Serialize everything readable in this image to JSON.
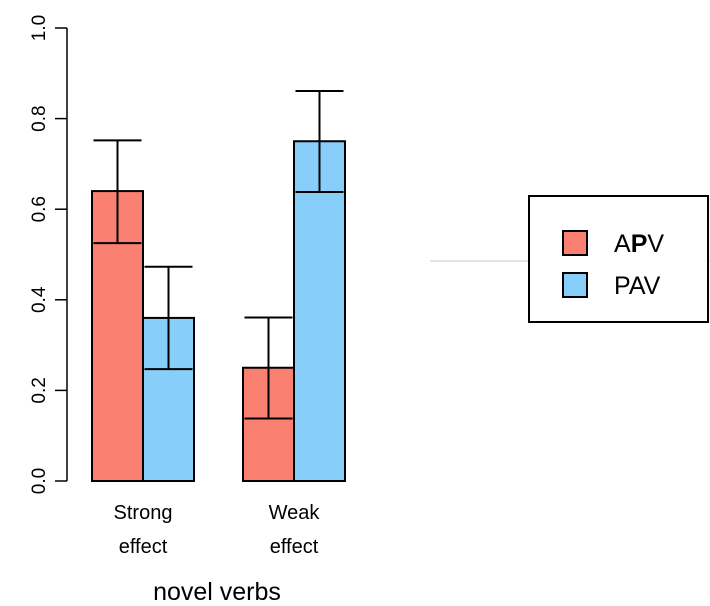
{
  "chart_data": {
    "type": "bar",
    "categories": [
      {
        "line1": "Strong",
        "line2": "effect"
      },
      {
        "line1": "Weak",
        "line2": "effect"
      }
    ],
    "series": [
      {
        "name": "APV",
        "color": "#FA8072",
        "values": [
          0.64,
          0.25
        ],
        "err_low": [
          0.525,
          0.138
        ],
        "err_high": [
          0.752,
          0.361
        ]
      },
      {
        "name": "PAV",
        "color": "#87CEFA",
        "values": [
          0.36,
          0.75
        ],
        "err_low": [
          0.247,
          0.638
        ],
        "err_high": [
          0.473,
          0.861
        ]
      }
    ],
    "legend": {
      "position": "right",
      "entries": [
        {
          "prefix": "A",
          "bold": "P",
          "suffix": "V"
        },
        {
          "prefix": "PAV",
          "bold": "",
          "suffix": ""
        }
      ]
    },
    "xlabel": "novel verbs",
    "ylabel": "",
    "ylim": [
      0,
      1
    ],
    "yticks": [
      "0.0",
      "0.2",
      "0.4",
      "0.6",
      "0.8",
      "1.0"
    ],
    "grid": false
  }
}
